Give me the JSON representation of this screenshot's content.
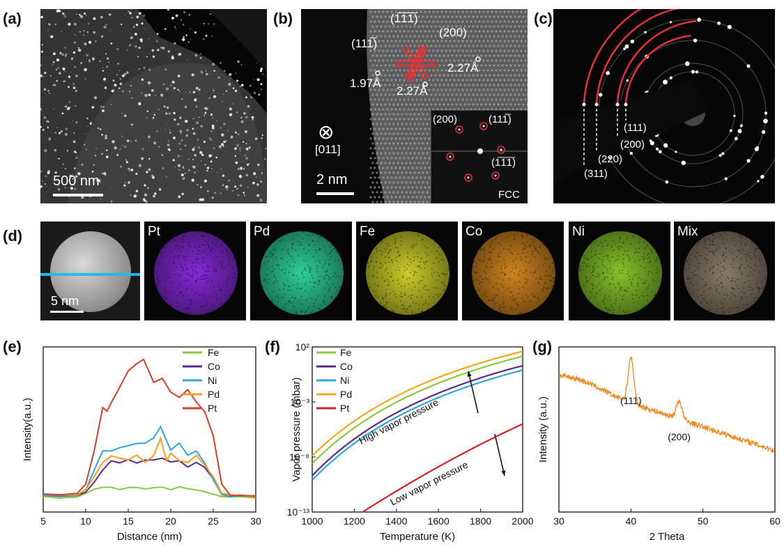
{
  "panels": {
    "a": {
      "label": "(a)",
      "scale_bar": "500 nm"
    },
    "b": {
      "label": "(b)",
      "zone_axis": "[011]",
      "scale_bar": "2 nm",
      "planes": [
        "(1̅1̅1̅)",
        "(200)",
        "(111̅)"
      ],
      "spacings": [
        "1.97Å",
        "2.27Å",
        "2.27Å"
      ],
      "inset": {
        "spots": [
          "(200)",
          "(111̅)",
          "(1̅1̅1̅)"
        ],
        "structure": "FCC"
      },
      "zone_symbol": "⊗"
    },
    "c": {
      "label": "(c)",
      "rings": [
        "(111)",
        "(200)",
        "(220)",
        "(311)"
      ]
    },
    "d": {
      "label": "(d)",
      "scale_bar": "5 nm",
      "maps": [
        {
          "name": "Pt",
          "color": "#8a2be2"
        },
        {
          "name": "Pd",
          "color": "#2fd9a0"
        },
        {
          "name": "Fe",
          "color": "#d6d62a"
        },
        {
          "name": "Co",
          "color": "#d98a1f"
        },
        {
          "name": "Ni",
          "color": "#8ccc2a"
        },
        {
          "name": "Mix",
          "color": "#8e7f6a"
        }
      ]
    },
    "e": {
      "label": "(e)"
    },
    "f": {
      "label": "(f)"
    },
    "g": {
      "label": "(g)"
    }
  },
  "chart_data": [
    {
      "id": "e",
      "type": "line",
      "xlabel": "Distance (nm)",
      "ylabel": "Intensity(a.u.)",
      "xlim": [
        5,
        30
      ],
      "xticks": [
        5,
        10,
        15,
        20,
        25,
        30
      ],
      "legend": "top-right",
      "series": [
        {
          "name": "Fe",
          "color": "#8dc63f",
          "x": [
            5,
            7,
            9,
            10,
            11,
            12,
            13,
            14,
            15,
            16,
            17,
            18,
            19,
            20,
            21,
            22,
            23,
            24,
            25,
            26,
            27,
            28,
            30
          ],
          "y": [
            3,
            2.5,
            3,
            4,
            6,
            7,
            7,
            6,
            6.5,
            6.5,
            6,
            6.5,
            7,
            6,
            7,
            6,
            5.5,
            5,
            4,
            3,
            2.5,
            3,
            2.5
          ]
        },
        {
          "name": "Co",
          "color": "#5b2a86",
          "x": [
            5,
            7,
            9,
            10,
            11,
            12,
            13,
            14,
            15,
            16,
            17,
            18,
            19,
            20,
            21,
            22,
            23,
            24,
            25,
            26,
            27,
            28,
            30
          ],
          "y": [
            3.5,
            3,
            3.5,
            5,
            9,
            14,
            18,
            17,
            18,
            17,
            18,
            18,
            19,
            17,
            18,
            15,
            17,
            15,
            10,
            4,
            3,
            3.5,
            3
          ]
        },
        {
          "name": "Ni",
          "color": "#2ea6d8",
          "x": [
            5,
            7,
            9,
            10,
            11,
            12,
            13,
            14,
            15,
            16,
            17,
            18,
            18.8,
            19.5,
            20,
            21,
            22,
            23,
            24,
            25,
            26,
            27,
            28,
            30
          ],
          "y": [
            3.5,
            3,
            3.5,
            6,
            14,
            22,
            22,
            23,
            24,
            25,
            25,
            27,
            32,
            26,
            22,
            25,
            20,
            22,
            17,
            10,
            4,
            3,
            3.5,
            3
          ]
        },
        {
          "name": "Pd",
          "color": "#f59f1f",
          "x": [
            5,
            7,
            9,
            10,
            11,
            12,
            13,
            14,
            15,
            16,
            17,
            18,
            18.8,
            19.5,
            20,
            21,
            22,
            23,
            24,
            25,
            26,
            27,
            28,
            30
          ],
          "y": [
            4,
            3.5,
            4,
            6,
            11,
            17,
            20,
            19,
            18,
            20,
            17,
            20,
            27,
            18,
            21,
            18,
            17,
            20,
            16,
            11,
            4,
            3.5,
            3.5,
            3
          ]
        },
        {
          "name": "Pt",
          "color": "#d0402a",
          "x": [
            5,
            7,
            9,
            10,
            11,
            12,
            12.5,
            13,
            14,
            15,
            16,
            16.8,
            17.5,
            18,
            19,
            20,
            21,
            22,
            23,
            24,
            25,
            26,
            27,
            28,
            30
          ],
          "y": [
            4,
            3.5,
            4,
            8,
            22,
            40,
            38,
            42,
            48,
            55,
            58,
            60,
            54,
            50,
            52,
            46,
            44,
            47,
            42,
            38,
            28,
            8,
            3.5,
            3.5,
            3
          ]
        }
      ]
    },
    {
      "id": "f",
      "type": "line",
      "xlabel": "Temperature (K)",
      "ylabel": "Vapor pressure (mbar)",
      "xlim": [
        1000,
        2000
      ],
      "xticks": [
        1000,
        1200,
        1400,
        1600,
        1800,
        2000
      ],
      "ylim_log10": [
        -13,
        2
      ],
      "yticks": [
        "10²",
        "10⁻³",
        "10⁻⁸",
        "10⁻¹³"
      ],
      "ytick_values_log10": [
        2,
        -3,
        -8,
        -13
      ],
      "legend": "top-left",
      "annotations": [
        "High vapor pressure",
        "Low vapor pressure"
      ],
      "series": [
        {
          "name": "Fe",
          "color": "#8dc63f",
          "A": 10.3,
          "B": 19500
        },
        {
          "name": "Co",
          "color": "#5b2a86",
          "A": 10.2,
          "B": 20000
        },
        {
          "name": "Ni",
          "color": "#2ea6d8",
          "A": 10.2,
          "B": 20000
        },
        {
          "name": "Pd",
          "color": "#f0a81c",
          "A": 10.0,
          "B": 19000
        },
        {
          "name": "Pt",
          "color": "#d0202a",
          "A": 10.7,
          "B": 27000
        }
      ]
    },
    {
      "id": "g",
      "type": "line",
      "xlabel": "2 Theta",
      "ylabel": "Intensity (a.u.)",
      "xlim": [
        30,
        60
      ],
      "xticks": [
        30,
        40,
        50,
        60
      ],
      "peaks": [
        {
          "label": "(111)",
          "x": 40,
          "h": 42
        },
        {
          "label": "(200)",
          "x": 46.7,
          "h": 17
        }
      ],
      "color": "#f08a1f"
    }
  ]
}
